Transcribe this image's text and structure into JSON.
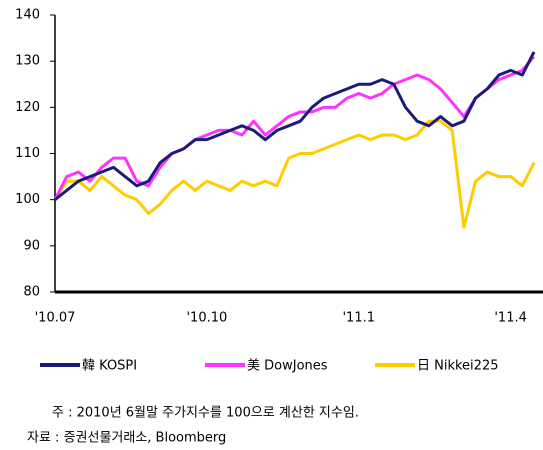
{
  "chart_data": {
    "type": "line",
    "categories": [
      "'10.07",
      null,
      null,
      null,
      null,
      null,
      null,
      null,
      null,
      null,
      null,
      null,
      null,
      "'10.10",
      null,
      null,
      null,
      null,
      null,
      null,
      null,
      null,
      null,
      null,
      null,
      null,
      "'11.1",
      null,
      null,
      null,
      null,
      null,
      null,
      null,
      null,
      null,
      null,
      null,
      null,
      "'11.4",
      null,
      null
    ],
    "series": [
      {
        "name": "韓 KOSPI",
        "color": "#1c1c78",
        "values": [
          100,
          102,
          104,
          105,
          106,
          107,
          105,
          103,
          104,
          108,
          110,
          111,
          113,
          113,
          114,
          115,
          116,
          115,
          113,
          115,
          116,
          117,
          120,
          122,
          123,
          124,
          125,
          125,
          126,
          125,
          120,
          117,
          116,
          118,
          116,
          117,
          122,
          124,
          127,
          128,
          127,
          132
        ]
      },
      {
        "name": "美 DowJones",
        "color": "#ff33ff",
        "values": [
          100,
          105,
          106,
          104,
          107,
          109,
          109,
          104,
          103,
          107,
          110,
          111,
          113,
          114,
          115,
          115,
          114,
          117,
          114,
          116,
          118,
          119,
          119,
          120,
          120,
          122,
          123,
          122,
          123,
          125,
          126,
          127,
          126,
          124,
          121,
          118,
          122,
          124,
          126,
          127,
          128,
          131
        ]
      },
      {
        "name": "日 Nikkei225",
        "color": "#ffcc00",
        "values": [
          100,
          104,
          104,
          102,
          105,
          103,
          101,
          100,
          97,
          99,
          102,
          104,
          102,
          104,
          103,
          102,
          104,
          103,
          104,
          103,
          109,
          110,
          110,
          111,
          112,
          113,
          114,
          113,
          114,
          114,
          113,
          114,
          117,
          117,
          115,
          94,
          104,
          106,
          105,
          105,
          103,
          108
        ]
      }
    ],
    "ylim": [
      80,
      140
    ],
    "yticks": [
      80,
      90,
      100,
      110,
      120,
      130,
      140
    ],
    "notes": [
      "주 : 2010년 6월말 주가지수를 100으로 계산한 지수임.",
      "자료 : 증권선물거래소, Bloomberg"
    ]
  }
}
